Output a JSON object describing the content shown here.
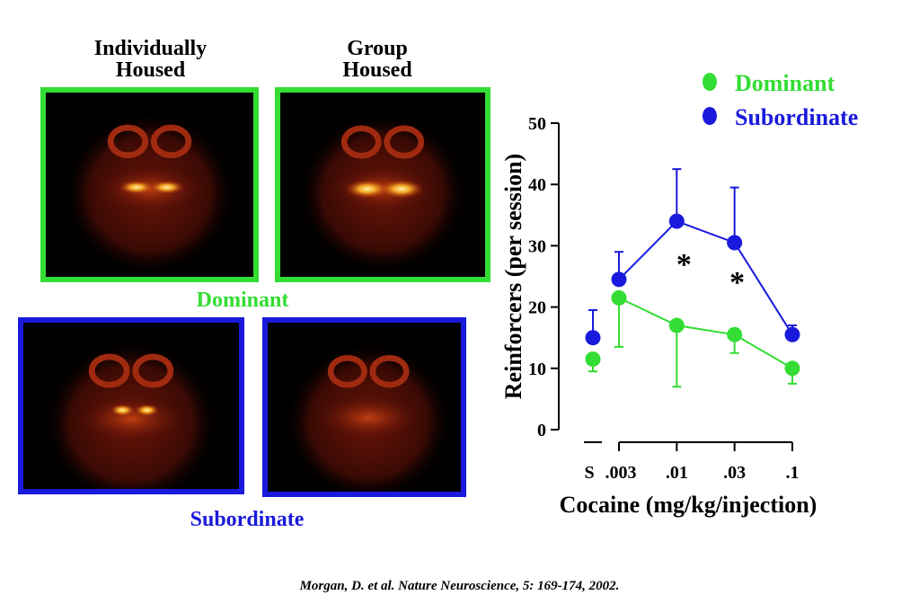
{
  "panels": {
    "column_labels": [
      "Individually Housed",
      "Group Housed"
    ],
    "row_labels": [
      "Dominant",
      "Subordinate"
    ]
  },
  "chart_data": {
    "type": "line",
    "ylabel": "Reinforcers (per session)",
    "xlabel": "Cocaine (mg/kg/injection)",
    "categories": [
      "S",
      ".003",
      ".01",
      ".03",
      ".1"
    ],
    "axis_break": true,
    "series": [
      {
        "name": "Dominant",
        "color": "#33dd33",
        "values": [
          11.5,
          21.5,
          17,
          15.5,
          10
        ],
        "errors": [
          2,
          8,
          10,
          3,
          2.5
        ],
        "error_direction": "down"
      },
      {
        "name": "Subordinate",
        "color": "#1a1adc",
        "values": [
          15,
          24.5,
          34,
          30.5,
          15.5
        ],
        "errors": [
          4.5,
          4.5,
          8.5,
          9,
          1.5
        ],
        "error_direction": "up"
      }
    ],
    "ylim": [
      0,
      50
    ],
    "yticks": [
      0,
      10,
      20,
      30,
      40,
      50
    ],
    "annotations": [
      {
        "text": "*",
        "category": 2
      },
      {
        "text": "*",
        "category": 3
      }
    ],
    "legend": "top-right"
  },
  "citation": "Morgan, D. et al. Nature Neuroscience, 5: 169-174, 2002."
}
